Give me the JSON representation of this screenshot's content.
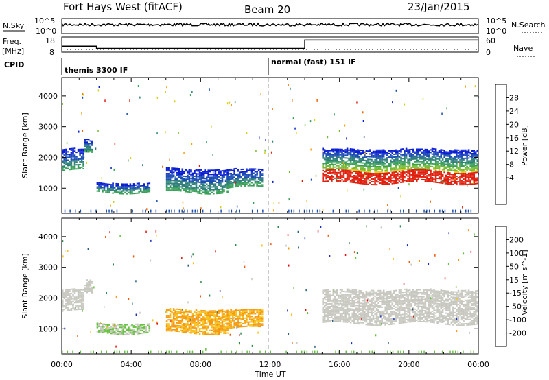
{
  "header": {
    "radar": "Fort Hays West (fitACF)",
    "beam": "Beam 20",
    "date": "23/Jan/2015"
  },
  "chart_data": {
    "type": "heatmap",
    "x_unit": "Time UT",
    "x_ticks": [
      "00:00",
      "04:00",
      "08:00",
      "12:00",
      "16:00",
      "20:00",
      "00:00"
    ],
    "x_range_hours": [
      0,
      24
    ],
    "strips": {
      "nsky": {
        "label": "N.Sky",
        "ticks": [
          "10^5",
          "10^0"
        ],
        "right_label": "N.Search",
        "right_ticks": [
          "10^5",
          "10^0"
        ]
      },
      "freq": {
        "label_top": "Freq.",
        "label_unit": "[MHz]",
        "ticks": [
          "18",
          "8"
        ],
        "right_label": "Nave",
        "right_ticks": [
          "60",
          "0"
        ],
        "freq_steps": [
          [
            0,
            2.0,
            12
          ],
          [
            2.0,
            14.0,
            10.5
          ],
          [
            14.0,
            24,
            16
          ]
        ]
      },
      "cpid": {
        "label": "CPID",
        "programs": [
          {
            "start": 0,
            "name": "themis 3300 IF"
          },
          {
            "start": 12,
            "name": "normal (fast) 151 IF"
          }
        ]
      }
    },
    "panels": [
      {
        "name": "power",
        "ylabel": "Slant Range [km]",
        "ylim": [
          180,
          4600
        ],
        "y_ticks": [
          1000,
          2000,
          3000,
          4000
        ],
        "colorbar_label": "Power [dB]",
        "colorbar_ticks": [
          "28",
          "24",
          "20",
          "16",
          "12",
          "8",
          "4"
        ],
        "colors": [
          "#0a1fd0",
          "#1b4db2",
          "#2f7f7a",
          "#3aa05a",
          "#77bb33",
          "#d7cf1a",
          "#f4a20d",
          "#f06a0c",
          "#e0200e"
        ]
      },
      {
        "name": "velocity",
        "ylabel": "Slant Range [km]",
        "ylim": [
          180,
          4600
        ],
        "y_ticks": [
          1000,
          2000,
          3000,
          4000
        ],
        "colorbar_label": "Velocity [m s^-1]",
        "colorbar_ticks": [
          "200",
          "100",
          "50",
          "15",
          "-15",
          "-50",
          "-100",
          "-200"
        ],
        "colors": [
          "#1b2fb8",
          "#2f5f7a",
          "#2f8a4f",
          "#66c13f",
          "#c8c8c0",
          "#f5c21a",
          "#f59a12",
          "#f05a0f",
          "#e01010"
        ]
      }
    ],
    "echo_regions": [
      {
        "t0": 0.0,
        "t1": 1.3,
        "r0": 1550,
        "r1": 2250,
        "r_min": 1450,
        "velocity_class": "ground"
      },
      {
        "t0": 1.3,
        "t1": 1.8,
        "r0": 2100,
        "r1": 2550,
        "r_min": 1900,
        "velocity_class": "ground"
      },
      {
        "t0": 2.0,
        "t1": 5.0,
        "r0": 850,
        "r1": 1150,
        "r_min": 850,
        "velocity_class": "mixed"
      },
      {
        "t0": 6.0,
        "t1": 9.5,
        "r0": 850,
        "r1": 1600,
        "r_min": 850,
        "velocity_class": "away"
      },
      {
        "t0": 9.5,
        "t1": 11.5,
        "r0": 1000,
        "r1": 1600,
        "r_min": 950,
        "velocity_class": "away"
      },
      {
        "t0": 15.0,
        "t1": 24.0,
        "r0": 1150,
        "r1": 2250,
        "r_min": 1100,
        "velocity_class": "ground"
      }
    ]
  }
}
